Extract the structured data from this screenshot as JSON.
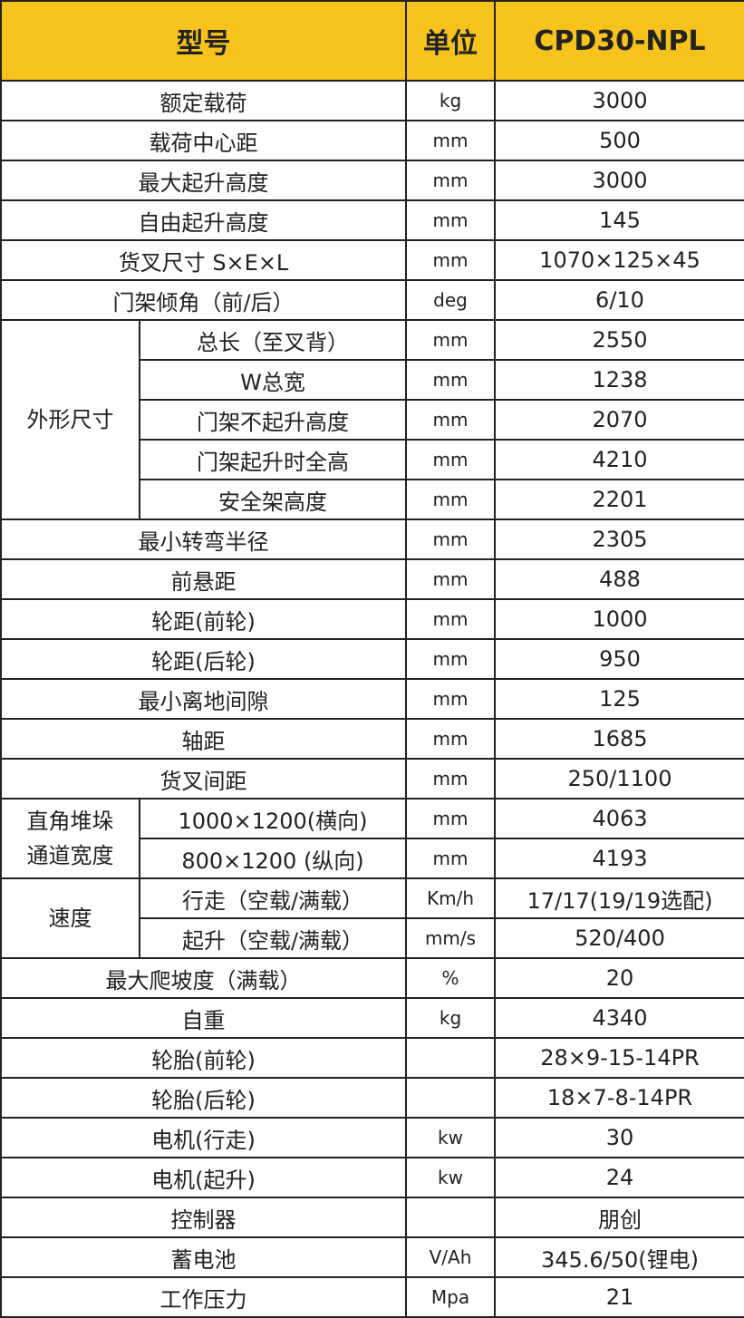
{
  "table": {
    "header": [
      "型号",
      "单位",
      "CPD30-NPL"
    ],
    "rows": [
      {
        "name": "额定载荷",
        "unit": "kg",
        "value": "3000"
      },
      {
        "name": "载荷中心距",
        "unit": "mm",
        "value": "500"
      },
      {
        "name": "最大起升高度",
        "unit": "mm",
        "value": "3000"
      },
      {
        "name": "自由起升高度",
        "unit": "mm",
        "value": "145"
      },
      {
        "name": "货叉尺寸  S×E×L",
        "unit": "mm",
        "value": "1070×125×45"
      },
      {
        "name": "门架倾角（前/后）",
        "unit": "deg",
        "value": "6/10"
      },
      {
        "group": "外形尺寸",
        "items": [
          {
            "name": "总长（至叉背）",
            "unit": "mm",
            "value": "2550"
          },
          {
            "name": "W总宽",
            "unit": "mm",
            "value": "1238"
          },
          {
            "name": "门架不起升高度",
            "unit": "mm",
            "value": "2070"
          },
          {
            "name": "门架起升时全高",
            "unit": "mm",
            "value": "4210"
          },
          {
            "name": "安全架高度",
            "unit": "mm",
            "value": "2201"
          }
        ]
      },
      {
        "name": "最小转弯半径",
        "unit": "mm",
        "value": "2305"
      },
      {
        "name": "前悬距",
        "unit": "mm",
        "value": "488"
      },
      {
        "name": "轮距(前轮)",
        "unit": "mm",
        "value": "1000"
      },
      {
        "name": "轮距(后轮)",
        "unit": "mm",
        "value": "950"
      },
      {
        "name": "最小离地间隙",
        "unit": "mm",
        "value": "125"
      },
      {
        "name": "轴距",
        "unit": "mm",
        "value": "1685"
      },
      {
        "name": "货叉间距",
        "unit": "mm",
        "value": "250/1100"
      },
      {
        "group": "直角堆垛\n通道宽度",
        "items": [
          {
            "name": "1000×1200(横向)",
            "unit": "mm",
            "value": "4063"
          },
          {
            "name": "800×1200 (纵向)",
            "unit": "mm",
            "value": "4193"
          }
        ]
      },
      {
        "group": "速度",
        "items": [
          {
            "name": "行走（空载/满载）",
            "unit": "Km/h",
            "value": "17/17(19/19选配)"
          },
          {
            "name": "起升（空载/满载）",
            "unit": "mm/s",
            "value": "520/400"
          }
        ]
      },
      {
        "name": "最大爬坡度（满载）",
        "unit": "%",
        "value": "20"
      },
      {
        "name": "自重",
        "unit": "kg",
        "value": "4340"
      },
      {
        "name": "轮胎(前轮)",
        "value": "28×9-15-14PR"
      },
      {
        "name": "轮胎(后轮)",
        "value": "18×7-8-14PR"
      },
      {
        "name": "电机(行走)",
        "unit": "kw",
        "value": "30"
      },
      {
        "name": "电机(起升)",
        "unit": "kw",
        "value": "24"
      },
      {
        "name": "控制器",
        "value": "朋创"
      },
      {
        "name": "蓄电池",
        "unit": "V/Ah",
        "value": "345.6/50(锂电)"
      },
      {
        "name": "工作压力",
        "unit": "Mpa",
        "value": "21"
      }
    ]
  }
}
